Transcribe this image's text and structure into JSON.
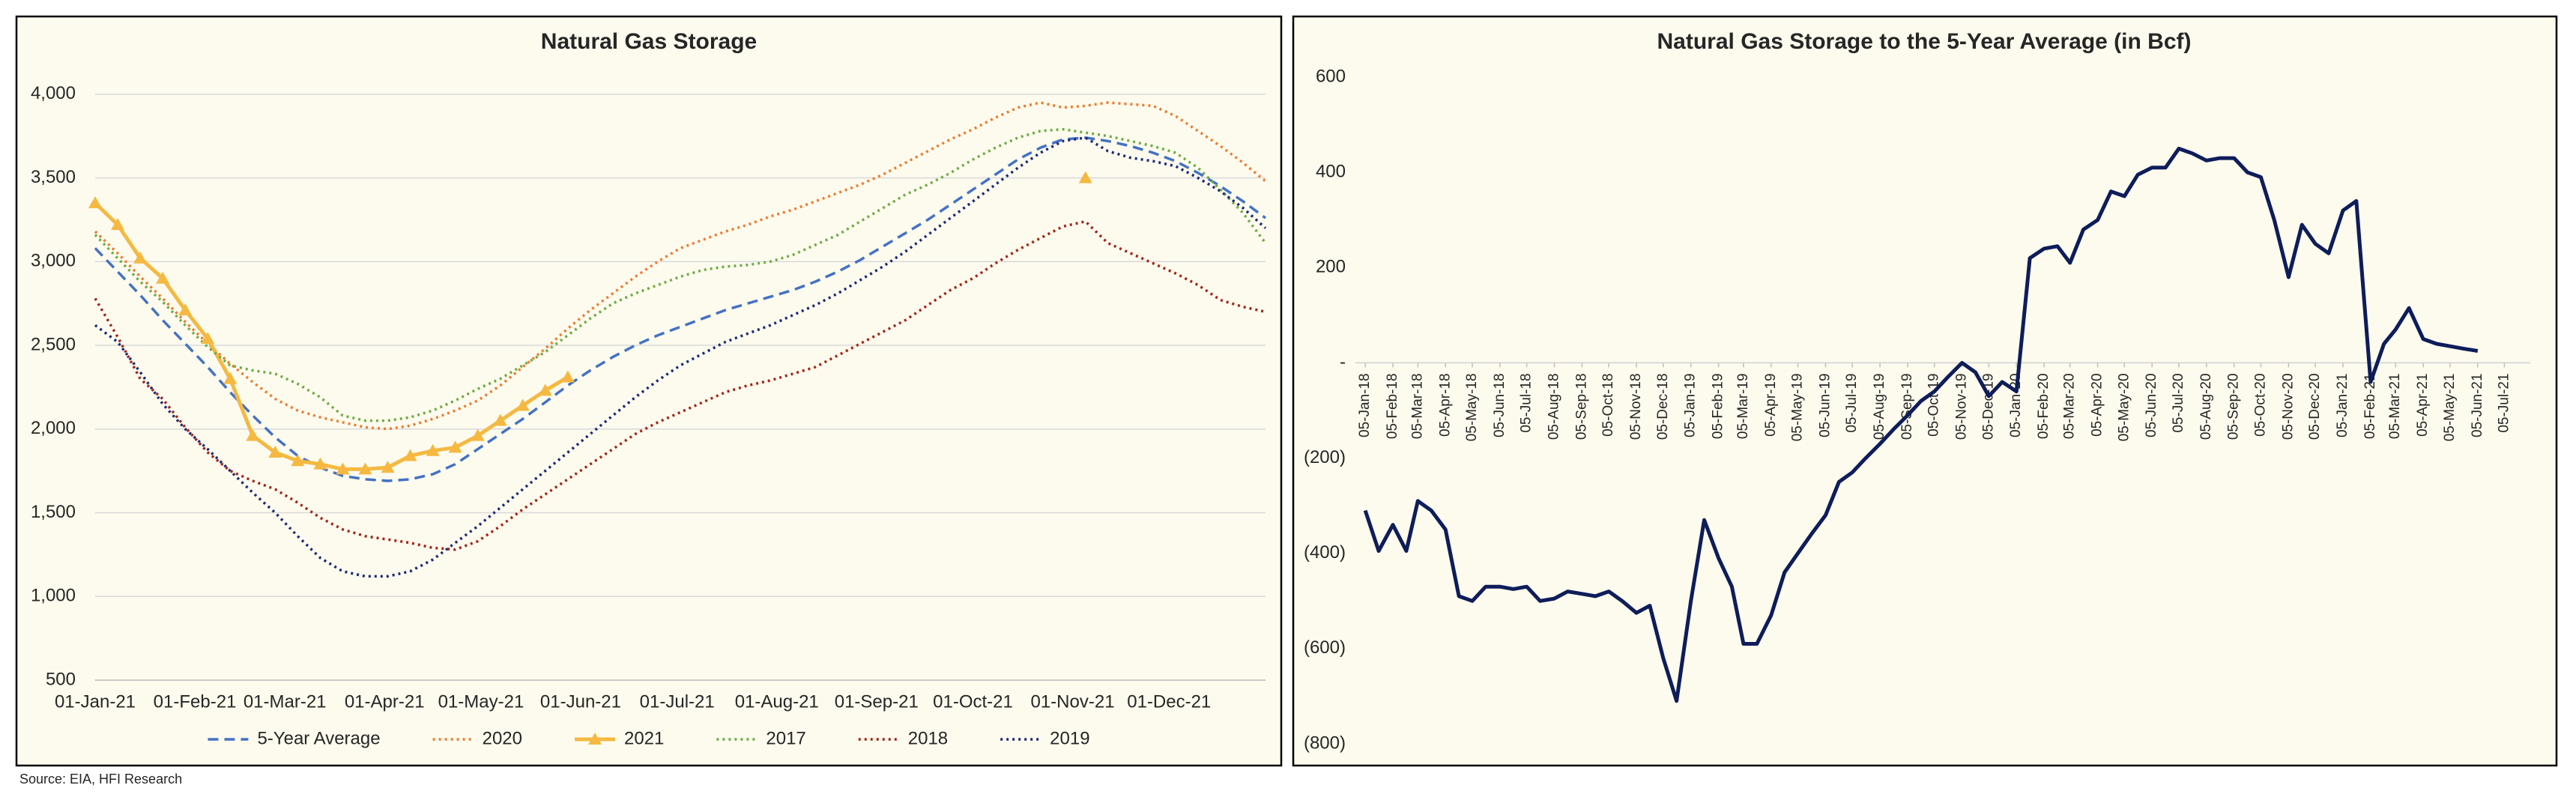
{
  "chart_data": [
    {
      "type": "line",
      "title": "Natural Gas Storage",
      "x": [
        "2021-01-01",
        "2021-01-08",
        "2021-01-15",
        "2021-01-22",
        "2021-01-29",
        "2021-02-05",
        "2021-02-12",
        "2021-02-19",
        "2021-02-26",
        "2021-03-05",
        "2021-03-12",
        "2021-03-19",
        "2021-03-26",
        "2021-04-02",
        "2021-04-09",
        "2021-04-16",
        "2021-04-23",
        "2021-04-30",
        "2021-05-07",
        "2021-05-14",
        "2021-05-21",
        "2021-05-28",
        "2021-06-04",
        "2021-06-11",
        "2021-06-18",
        "2021-06-25",
        "2021-07-02",
        "2021-07-09",
        "2021-07-16",
        "2021-07-23",
        "2021-07-30",
        "2021-08-06",
        "2021-08-13",
        "2021-08-20",
        "2021-08-27",
        "2021-09-03",
        "2021-09-10",
        "2021-09-17",
        "2021-09-24",
        "2021-10-01",
        "2021-10-08",
        "2021-10-15",
        "2021-10-22",
        "2021-10-29",
        "2021-11-05",
        "2021-11-12",
        "2021-11-19",
        "2021-11-26",
        "2021-12-03",
        "2021-12-10",
        "2021-12-17",
        "2021-12-24",
        "2021-12-31"
      ],
      "xlim": [
        "2021-01-01",
        "2021-12-31"
      ],
      "xticks": [
        {
          "value": "2021-01-01",
          "label": "01-Jan-21"
        },
        {
          "value": "2021-02-01",
          "label": "01-Feb-21"
        },
        {
          "value": "2021-03-01",
          "label": "01-Mar-21"
        },
        {
          "value": "2021-04-01",
          "label": "01-Apr-21"
        },
        {
          "value": "2021-05-01",
          "label": "01-May-21"
        },
        {
          "value": "2021-06-01",
          "label": "01-Jun-21"
        },
        {
          "value": "2021-07-01",
          "label": "01-Jul-21"
        },
        {
          "value": "2021-08-01",
          "label": "01-Aug-21"
        },
        {
          "value": "2021-09-01",
          "label": "01-Sep-21"
        },
        {
          "value": "2021-10-01",
          "label": "01-Oct-21"
        },
        {
          "value": "2021-11-01",
          "label": "01-Nov-21"
        },
        {
          "value": "2021-12-01",
          "label": "01-Dec-21"
        }
      ],
      "ylim": [
        500,
        4200
      ],
      "yticks": [
        500,
        {
          "value": 1000,
          "label": "1,000"
        },
        {
          "value": 1500,
          "label": "1,500"
        },
        {
          "value": 2000,
          "label": "2,000"
        },
        {
          "value": 2500,
          "label": "2,500"
        },
        {
          "value": 3000,
          "label": "3,000"
        },
        {
          "value": 3500,
          "label": "3,500"
        },
        {
          "value": 4000,
          "label": "4,000"
        }
      ],
      "grid": true,
      "legend": "bottom",
      "series": [
        {
          "name": "5-Year Average",
          "color": "#4472c4",
          "style": "dashed",
          "values": [
            3080,
            2940,
            2800,
            2650,
            2510,
            2370,
            2220,
            2080,
            1950,
            1840,
            1770,
            1720,
            1700,
            1690,
            1700,
            1730,
            1790,
            1880,
            1970,
            2060,
            2160,
            2260,
            2350,
            2430,
            2500,
            2560,
            2610,
            2660,
            2710,
            2750,
            2790,
            2830,
            2880,
            2940,
            3010,
            3090,
            3170,
            3250,
            3340,
            3430,
            3520,
            3610,
            3680,
            3730,
            3740,
            3720,
            3690,
            3650,
            3600,
            3530,
            3450,
            3360,
            3260
          ]
        },
        {
          "name": "2020",
          "color": "#ed7d31",
          "style": "dotted",
          "values": [
            3180,
            3050,
            2910,
            2780,
            2640,
            2510,
            2390,
            2280,
            2180,
            2110,
            2070,
            2040,
            2010,
            2000,
            2020,
            2060,
            2110,
            2170,
            2260,
            2370,
            2480,
            2600,
            2710,
            2810,
            2910,
            3000,
            3080,
            3130,
            3180,
            3220,
            3270,
            3310,
            3360,
            3410,
            3460,
            3520,
            3590,
            3660,
            3730,
            3790,
            3860,
            3920,
            3950,
            3920,
            3930,
            3950,
            3940,
            3930,
            3870,
            3780,
            3690,
            3590,
            3480
          ]
        },
        {
          "name": "2021",
          "color": "#f5b942",
          "style": "solid",
          "marker": "triangle",
          "values": [
            3350,
            3220,
            3020,
            2900,
            2710,
            2540,
            2300,
            1960,
            1860,
            1810,
            1790,
            1760,
            1760,
            1770,
            1840,
            1870,
            1890,
            1960,
            2050,
            2140,
            2230,
            2310,
            null,
            null,
            null,
            null,
            null,
            null,
            null,
            null,
            null,
            null,
            null,
            null,
            null,
            null,
            null,
            null,
            null,
            null,
            null,
            null,
            null,
            null,
            3500,
            null,
            null,
            null,
            null,
            null,
            null,
            null,
            null
          ]
        },
        {
          "name": "2017",
          "color": "#70ad47",
          "style": "dotted",
          "values": [
            3160,
            3020,
            2880,
            2760,
            2620,
            2490,
            2380,
            2350,
            2330,
            2270,
            2190,
            2080,
            2050,
            2050,
            2070,
            2110,
            2170,
            2240,
            2300,
            2380,
            2460,
            2560,
            2660,
            2750,
            2810,
            2860,
            2910,
            2950,
            2970,
            2980,
            3000,
            3040,
            3100,
            3160,
            3240,
            3320,
            3400,
            3460,
            3530,
            3610,
            3680,
            3740,
            3780,
            3790,
            3770,
            3750,
            3720,
            3690,
            3650,
            3560,
            3430,
            3290,
            3110
          ]
        },
        {
          "name": "2018",
          "color": "#a3261b",
          "style": "dotted",
          "values": [
            2780,
            2550,
            2300,
            2180,
            2010,
            1860,
            1750,
            1690,
            1640,
            1560,
            1470,
            1400,
            1360,
            1340,
            1320,
            1290,
            1280,
            1330,
            1420,
            1520,
            1610,
            1700,
            1790,
            1880,
            1970,
            2040,
            2100,
            2160,
            2220,
            2260,
            2290,
            2330,
            2370,
            2440,
            2510,
            2580,
            2650,
            2740,
            2830,
            2900,
            2990,
            3070,
            3140,
            3210,
            3240,
            3110,
            3050,
            2990,
            2930,
            2860,
            2770,
            2730,
            2700
          ]
        },
        {
          "name": "2019",
          "color": "#1c2a78",
          "style": "dotted",
          "values": [
            2620,
            2520,
            2340,
            2150,
            2000,
            1880,
            1750,
            1620,
            1500,
            1360,
            1230,
            1150,
            1120,
            1120,
            1150,
            1220,
            1320,
            1420,
            1530,
            1640,
            1750,
            1860,
            1970,
            2080,
            2190,
            2290,
            2380,
            2450,
            2520,
            2570,
            2620,
            2680,
            2740,
            2810,
            2890,
            2970,
            3060,
            3160,
            3260,
            3360,
            3460,
            3560,
            3650,
            3720,
            3740,
            3660,
            3620,
            3600,
            3570,
            3500,
            3420,
            3320,
            3200
          ]
        }
      ]
    },
    {
      "type": "line",
      "title": "Natural Gas Storage to the 5-Year Average (in Bcf)",
      "x": [
        "2018-01-05",
        "2018-01-20",
        "2018-02-05",
        "2018-02-20",
        "2018-03-05",
        "2018-03-20",
        "2018-04-05",
        "2018-04-20",
        "2018-05-05",
        "2018-05-20",
        "2018-06-05",
        "2018-06-20",
        "2018-07-05",
        "2018-07-20",
        "2018-08-05",
        "2018-08-20",
        "2018-09-05",
        "2018-09-20",
        "2018-10-05",
        "2018-10-20",
        "2018-11-05",
        "2018-11-20",
        "2018-12-05",
        "2018-12-20",
        "2019-01-05",
        "2019-01-20",
        "2019-02-05",
        "2019-02-20",
        "2019-03-05",
        "2019-03-20",
        "2019-04-05",
        "2019-04-20",
        "2019-05-05",
        "2019-05-20",
        "2019-06-05",
        "2019-06-20",
        "2019-07-05",
        "2019-07-20",
        "2019-08-05",
        "2019-08-20",
        "2019-09-05",
        "2019-09-20",
        "2019-10-05",
        "2019-10-20",
        "2019-11-05",
        "2019-11-20",
        "2019-12-05",
        "2019-12-20",
        "2020-01-05",
        "2020-01-20",
        "2020-02-05",
        "2020-02-20",
        "2020-03-05",
        "2020-03-20",
        "2020-04-05",
        "2020-04-20",
        "2020-05-05",
        "2020-05-20",
        "2020-06-05",
        "2020-06-20",
        "2020-07-05",
        "2020-07-20",
        "2020-08-05",
        "2020-08-20",
        "2020-09-05",
        "2020-09-20",
        "2020-10-05",
        "2020-10-20",
        "2020-11-05",
        "2020-11-20",
        "2020-12-05",
        "2020-12-20",
        "2021-01-05",
        "2021-01-20",
        "2021-02-05",
        "2021-02-20",
        "2021-03-05",
        "2021-03-20",
        "2021-04-05",
        "2021-04-20",
        "2021-05-05",
        "2021-05-20",
        "2021-06-05"
      ],
      "values": [
        -310,
        -395,
        -340,
        -395,
        -290,
        -310,
        -350,
        -490,
        -500,
        -470,
        -470,
        -475,
        -470,
        -500,
        -495,
        -480,
        -485,
        -490,
        -480,
        -500,
        -525,
        -510,
        -620,
        -710,
        -500,
        -330,
        -410,
        -470,
        -590,
        -590,
        -530,
        -440,
        -400,
        -360,
        -320,
        -250,
        -230,
        -200,
        -170,
        -140,
        -110,
        -80,
        -60,
        -30,
        0,
        -20,
        -70,
        -40,
        -60,
        220,
        240,
        245,
        210,
        280,
        300,
        360,
        350,
        395,
        410,
        410,
        450,
        440,
        425,
        430,
        430,
        400,
        390,
        300,
        180,
        290,
        250,
        230,
        320,
        340,
        -40,
        40,
        70,
        115,
        50,
        40,
        35,
        30,
        25
      ],
      "color": "#0e1d5a",
      "xlim": [
        "2017-12-25",
        "2021-08-03"
      ],
      "xticks": [
        {
          "value": "2018-01-05",
          "label": "05-Jan-18"
        },
        {
          "value": "2018-02-05",
          "label": "05-Feb-18"
        },
        {
          "value": "2018-03-05",
          "label": "05-Mar-18"
        },
        {
          "value": "2018-04-05",
          "label": "05-Apr-18"
        },
        {
          "value": "2018-05-05",
          "label": "05-May-18"
        },
        {
          "value": "2018-06-05",
          "label": "05-Jun-18"
        },
        {
          "value": "2018-07-05",
          "label": "05-Jul-18"
        },
        {
          "value": "2018-08-05",
          "label": "05-Aug-18"
        },
        {
          "value": "2018-09-05",
          "label": "05-Sep-18"
        },
        {
          "value": "2018-10-05",
          "label": "05-Oct-18"
        },
        {
          "value": "2018-11-05",
          "label": "05-Nov-18"
        },
        {
          "value": "2018-12-05",
          "label": "05-Dec-18"
        },
        {
          "value": "2019-01-05",
          "label": "05-Jan-19"
        },
        {
          "value": "2019-02-05",
          "label": "05-Feb-19"
        },
        {
          "value": "2019-03-05",
          "label": "05-Mar-19"
        },
        {
          "value": "2019-04-05",
          "label": "05-Apr-19"
        },
        {
          "value": "2019-05-05",
          "label": "05-May-19"
        },
        {
          "value": "2019-06-05",
          "label": "05-Jun-19"
        },
        {
          "value": "2019-07-05",
          "label": "05-Jul-19"
        },
        {
          "value": "2019-08-05",
          "label": "05-Aug-19"
        },
        {
          "value": "2019-09-05",
          "label": "05-Sep-19"
        },
        {
          "value": "2019-10-05",
          "label": "05-Oct-19"
        },
        {
          "value": "2019-11-05",
          "label": "05-Nov-19"
        },
        {
          "value": "2019-12-05",
          "label": "05-Dec-19"
        },
        {
          "value": "2020-01-05",
          "label": "05-Jan-20"
        },
        {
          "value": "2020-02-05",
          "label": "05-Feb-20"
        },
        {
          "value": "2020-03-05",
          "label": "05-Mar-20"
        },
        {
          "value": "2020-04-05",
          "label": "05-Apr-20"
        },
        {
          "value": "2020-05-05",
          "label": "05-May-20"
        },
        {
          "value": "2020-06-05",
          "label": "05-Jun-20"
        },
        {
          "value": "2020-07-05",
          "label": "05-Jul-20"
        },
        {
          "value": "2020-08-05",
          "label": "05-Aug-20"
        },
        {
          "value": "2020-09-05",
          "label": "05-Sep-20"
        },
        {
          "value": "2020-10-05",
          "label": "05-Oct-20"
        },
        {
          "value": "2020-11-05",
          "label": "05-Nov-20"
        },
        {
          "value": "2020-12-05",
          "label": "05-Dec-20"
        },
        {
          "value": "2021-01-05",
          "label": "05-Jan-21"
        },
        {
          "value": "2021-02-05",
          "label": "05-Feb-21"
        },
        {
          "value": "2021-03-05",
          "label": "05-Mar-21"
        },
        {
          "value": "2021-04-05",
          "label": "05-Apr-21"
        },
        {
          "value": "2021-05-05",
          "label": "05-May-21"
        },
        {
          "value": "2021-06-05",
          "label": "05-Jun-21"
        },
        {
          "value": "2021-07-05",
          "label": "05-Jul-21"
        }
      ],
      "ylim": [
        -800,
        600
      ],
      "yticks": [
        600,
        400,
        200,
        {
          "value": 0,
          "label": "-"
        },
        {
          "value": -200,
          "label": "(200)"
        },
        {
          "value": -400,
          "label": "(400)"
        },
        {
          "value": -600,
          "label": "(600)"
        },
        {
          "value": -800,
          "label": "(800)"
        }
      ],
      "grid": false
    }
  ],
  "source": "Source: EIA, HFI Research"
}
